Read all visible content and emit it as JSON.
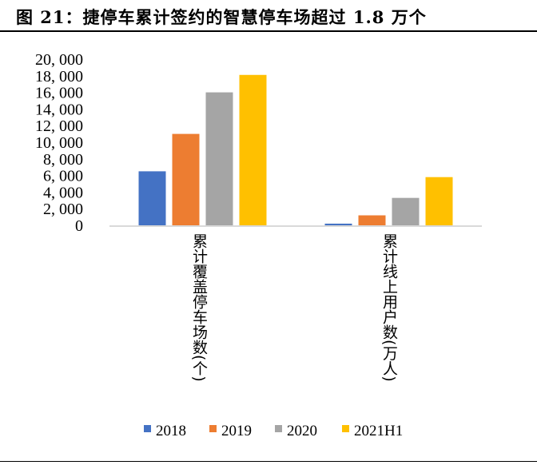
{
  "title": "图 21：捷停车累计签约的智慧停车场超过 1.8 万个",
  "chart_data": {
    "type": "bar",
    "title": "",
    "categories": [
      "累计覆盖停车场数(个)",
      "累计线上用户数(万人)"
    ],
    "series": [
      {
        "name": "2018",
        "values": [
          6500,
          200
        ],
        "color": "#4472C4"
      },
      {
        "name": "2019",
        "values": [
          11000,
          1200
        ],
        "color": "#ED7D31"
      },
      {
        "name": "2020",
        "values": [
          16000,
          3300
        ],
        "color": "#A5A5A5"
      },
      {
        "name": "2021H1",
        "values": [
          18100,
          5800
        ],
        "color": "#FFC000"
      }
    ],
    "ylim": [
      0,
      20000
    ],
    "yticks": [
      "0",
      "2, 000",
      "4, 000",
      "6, 000",
      "8, 000",
      "10, 000",
      "12, 000",
      "14, 000",
      "16, 000",
      "18, 000",
      "20, 000"
    ],
    "grid": false,
    "legend": "bottom"
  }
}
